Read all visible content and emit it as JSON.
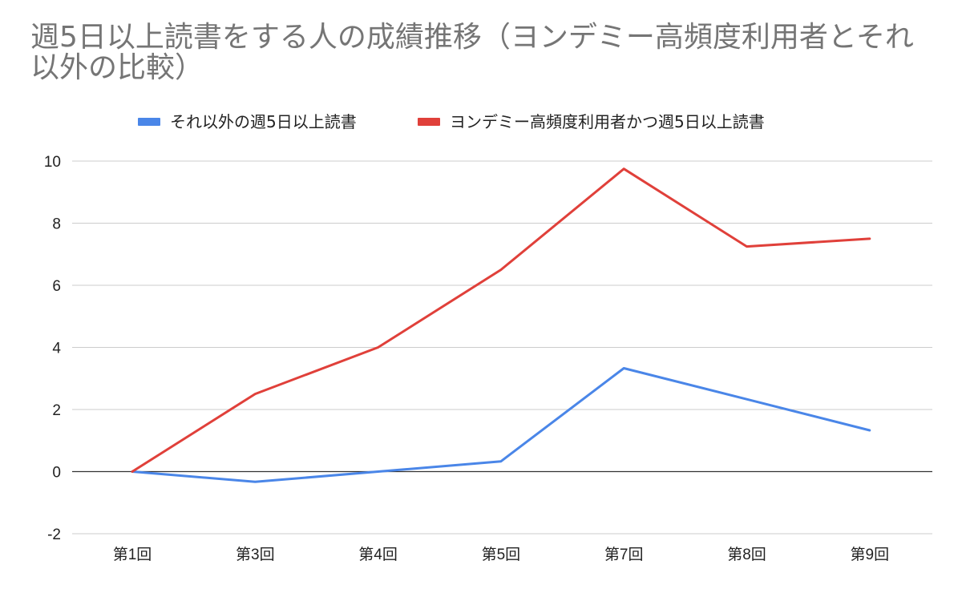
{
  "chart_data": {
    "type": "line",
    "title": "週5日以上読書をする人の成績推移（ヨンデミー高頻度利用者とそれ以外の比較）",
    "categories": [
      "第1回",
      "第3回",
      "第4回",
      "第5回",
      "第7回",
      "第8回",
      "第9回"
    ],
    "series": [
      {
        "name": "それ以外の週5日以上読書",
        "color": "#4a86e8",
        "values": [
          0,
          -0.33,
          0,
          0.33,
          3.33,
          2.33,
          1.33
        ]
      },
      {
        "name": "ヨンデミー高頻度利用者かつ週5日以上読書",
        "color": "#e0403a",
        "values": [
          0,
          2.5,
          4,
          6.5,
          9.75,
          7.25,
          7.5
        ]
      }
    ],
    "ylim": [
      -2,
      10
    ],
    "yticks": [
      "-2",
      "0",
      "2",
      "4",
      "6",
      "8",
      "10"
    ],
    "legend_position": "top",
    "grid": true,
    "xlabel": "",
    "ylabel": ""
  }
}
